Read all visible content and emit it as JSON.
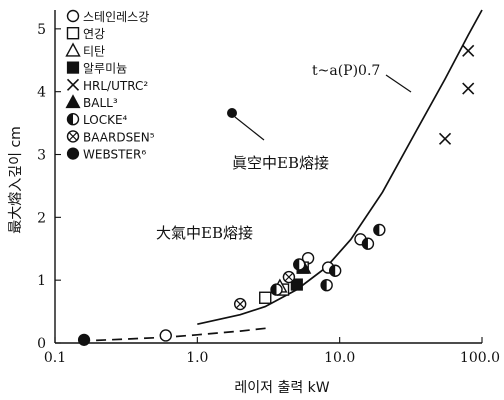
{
  "chart_data": {
    "type": "scatter",
    "xlabel": "레이저 출력 kW",
    "ylabel": "最大熔入깊이 cm",
    "xscale": "log",
    "xlim": [
      0.1,
      100.0
    ],
    "ylim": [
      0,
      5.3
    ],
    "x_ticks": [
      "0.1",
      "1.0",
      "10.0",
      "100.0"
    ],
    "y_ticks": [
      "0",
      "1",
      "2",
      "3",
      "4",
      "5"
    ],
    "grid": false,
    "legend_position": "top-left",
    "series": [
      {
        "name": "스테인레스강",
        "marker": "open-circle",
        "points": [
          [
            0.6,
            0.12
          ],
          [
            6.0,
            1.35
          ],
          [
            8.3,
            1.2
          ],
          [
            14.0,
            1.65
          ]
        ]
      },
      {
        "name": "연강",
        "marker": "open-square",
        "points": [
          [
            3.0,
            0.72
          ],
          [
            4.0,
            0.85
          ],
          [
            5.5,
            1.2
          ]
        ]
      },
      {
        "name": "티탄",
        "marker": "open-triangle",
        "points": [
          [
            3.8,
            0.9
          ]
        ]
      },
      {
        "name": "알루미늄",
        "marker": "filled-square",
        "points": [
          [
            5.0,
            0.93
          ]
        ]
      },
      {
        "name": "HRL/UTRC²",
        "marker": "x",
        "points": [
          [
            55.0,
            3.25
          ],
          [
            80.0,
            4.05
          ],
          [
            80.0,
            4.65
          ]
        ]
      },
      {
        "name": "BALL³",
        "marker": "filled-triangle",
        "points": [
          [
            5.6,
            1.2
          ]
        ]
      },
      {
        "name": "LOCKE⁴",
        "marker": "half-filled-circle",
        "points": [
          [
            3.6,
            0.85
          ],
          [
            5.2,
            1.25
          ],
          [
            8.1,
            0.92
          ],
          [
            9.3,
            1.15
          ],
          [
            15.8,
            1.58
          ],
          [
            19.0,
            1.8
          ]
        ]
      },
      {
        "name": "BAARDSEN⁵",
        "marker": "crossed-circle",
        "points": [
          [
            2.0,
            0.62
          ],
          [
            4.4,
            1.05
          ]
        ]
      },
      {
        "name": "WEBSTER⁶",
        "marker": "filled-circle",
        "points": [
          [
            0.16,
            0.05
          ]
        ]
      }
    ],
    "curves": [
      {
        "label": "t~a(P)0.7",
        "style": "solid",
        "x": [
          1.0,
          2.0,
          3.0,
          5.0,
          8.0,
          12.0,
          20.0,
          35.0,
          55.0,
          80.0,
          100.0
        ],
        "y": [
          0.3,
          0.45,
          0.58,
          0.85,
          1.2,
          1.65,
          2.4,
          3.4,
          4.2,
          4.9,
          5.3
        ]
      },
      {
        "label": "",
        "style": "dashed",
        "x": [
          0.15,
          0.3,
          0.6,
          1.0,
          2.0,
          3.2
        ],
        "y": [
          0.03,
          0.06,
          0.09,
          0.13,
          0.19,
          0.24
        ]
      }
    ],
    "annotations": [
      {
        "text": "t~a(P)0.7"
      },
      {
        "text": "眞空中EB熔接"
      },
      {
        "text": "大氣中EB熔接"
      }
    ]
  }
}
